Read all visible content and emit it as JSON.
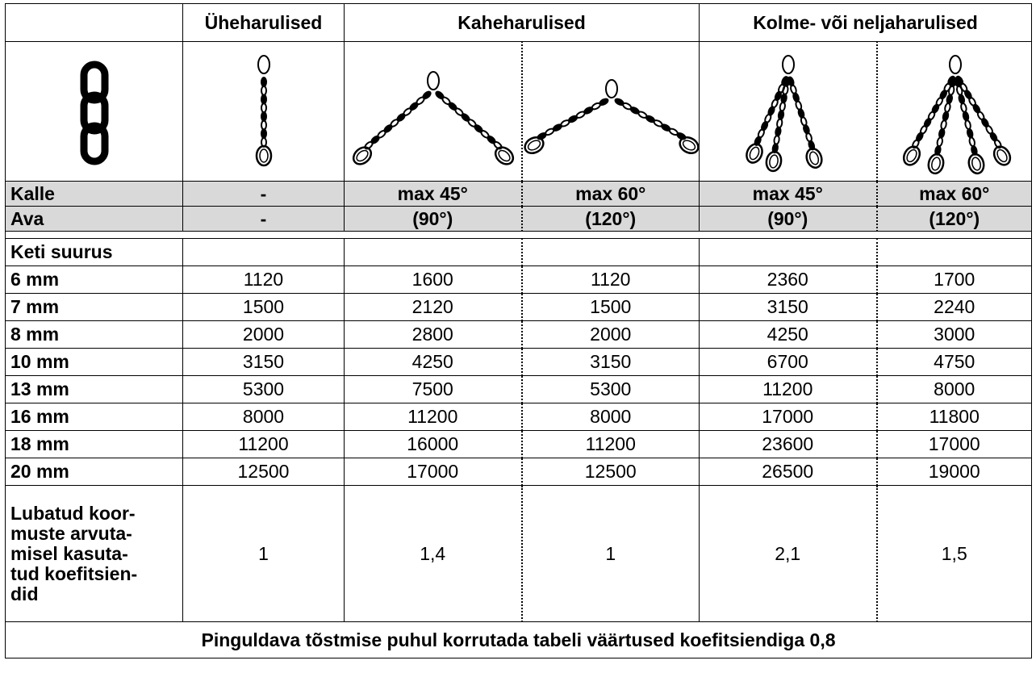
{
  "table": {
    "groups": [
      "Üheharulised",
      "Kaheharulised",
      "Kolme- või neljaharulised"
    ],
    "kalle": {
      "label": "Kalle",
      "values": [
        "-",
        "max 45°",
        "max 60°",
        "max 45°",
        "max 60°"
      ]
    },
    "ava": {
      "label": "Ava",
      "values": [
        "-",
        "(90°)",
        "(120°)",
        "(90°)",
        "(120°)"
      ]
    },
    "size_header": "Keti suurus",
    "rows": [
      [
        "6 mm",
        1120,
        1600,
        1120,
        2360,
        1700
      ],
      [
        "7 mm",
        1500,
        2120,
        1500,
        3150,
        2240
      ],
      [
        "8 mm",
        2000,
        2800,
        2000,
        4250,
        3000
      ],
      [
        "10 mm",
        3150,
        4250,
        3150,
        6700,
        4750
      ],
      [
        "13 mm",
        5300,
        7500,
        5300,
        11200,
        8000
      ],
      [
        "16 mm",
        8000,
        11200,
        8000,
        17000,
        11800
      ],
      [
        "18 mm",
        11200,
        16000,
        11200,
        23600,
        17000
      ],
      [
        "20 mm",
        12500,
        17000,
        12500,
        26500,
        19000
      ]
    ],
    "coefficients": {
      "label": "Lubatud koor-\nmuste arvuta-\nmisel kasuta-\ntud koefitsien-\ndid",
      "values": [
        "1",
        "1,4",
        "1",
        "2,1",
        "1,5"
      ]
    },
    "footer": "Pinguldava tõstmise puhul korrutada tabeli väärtused koefitsiendiga 0,8"
  }
}
